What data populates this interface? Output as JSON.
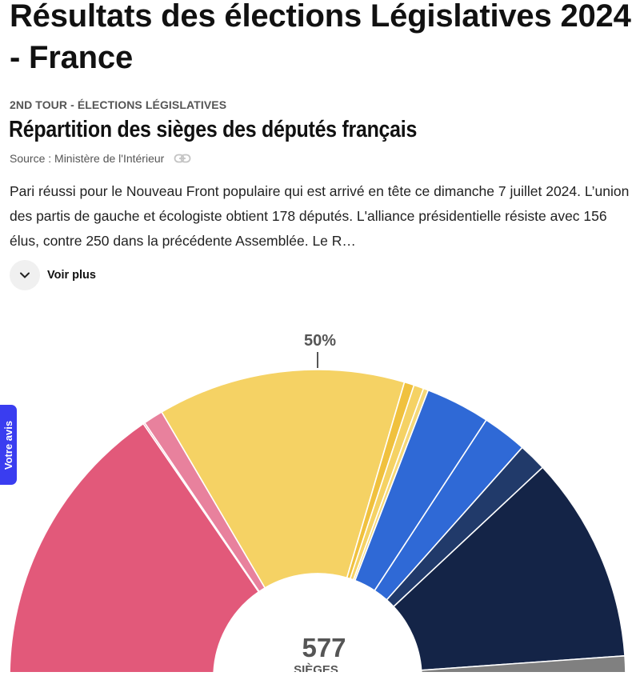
{
  "page": {
    "title": "Résultats des élections Législatives 2024 - France"
  },
  "article": {
    "eyebrow": "2ND TOUR - ÉLECTIONS LÉGISLATIVES",
    "chart_title": "Répartition des sièges des députés français",
    "source": "Source : Ministère de l'Intérieur",
    "intro": "Pari réussi pour le Nouveau Front populaire qui est arrivé en tête ce dimanche 7 juillet 2024. L’union des partis de gauche et écologiste obtient 178 députés. L'alliance présidentielle résiste avec 156 élus, contre 250 dans la précédente Assemblée. Le R…",
    "voir_plus_label": "Voir plus"
  },
  "feedback_tab": {
    "label": "Votre avis"
  },
  "icons": {
    "link": "link-icon",
    "chevron": "chevron-down-icon"
  },
  "chart_data": {
    "type": "pie",
    "subtype": "semicircle-hemicycle",
    "title": "Répartition des sièges des députés français",
    "total_seats": 577,
    "center_value": "577",
    "center_label": "SIÈGES",
    "majority_marker_label": "50%",
    "majority_marker_fraction": 0.5,
    "slices": [
      {
        "seats": 178,
        "color": "#E2597A"
      },
      {
        "seats": 1,
        "color": "#E2597A"
      },
      {
        "seats": 12,
        "color": "#E8819D"
      },
      {
        "seats": 150,
        "color": "#F5D264"
      },
      {
        "seats": 6,
        "color": "#F0C13E"
      },
      {
        "seats": 6,
        "color": "#F5D264"
      },
      {
        "seats": 3,
        "color": "#F5D878"
      },
      {
        "seats": 39,
        "color": "#2F69D6"
      },
      {
        "seats": 27,
        "color": "#2F69D6"
      },
      {
        "seats": 17,
        "color": "#213A6A"
      },
      {
        "seats": 125,
        "color": "#142447"
      },
      {
        "seats": 13,
        "color": "#808080"
      }
    ]
  }
}
